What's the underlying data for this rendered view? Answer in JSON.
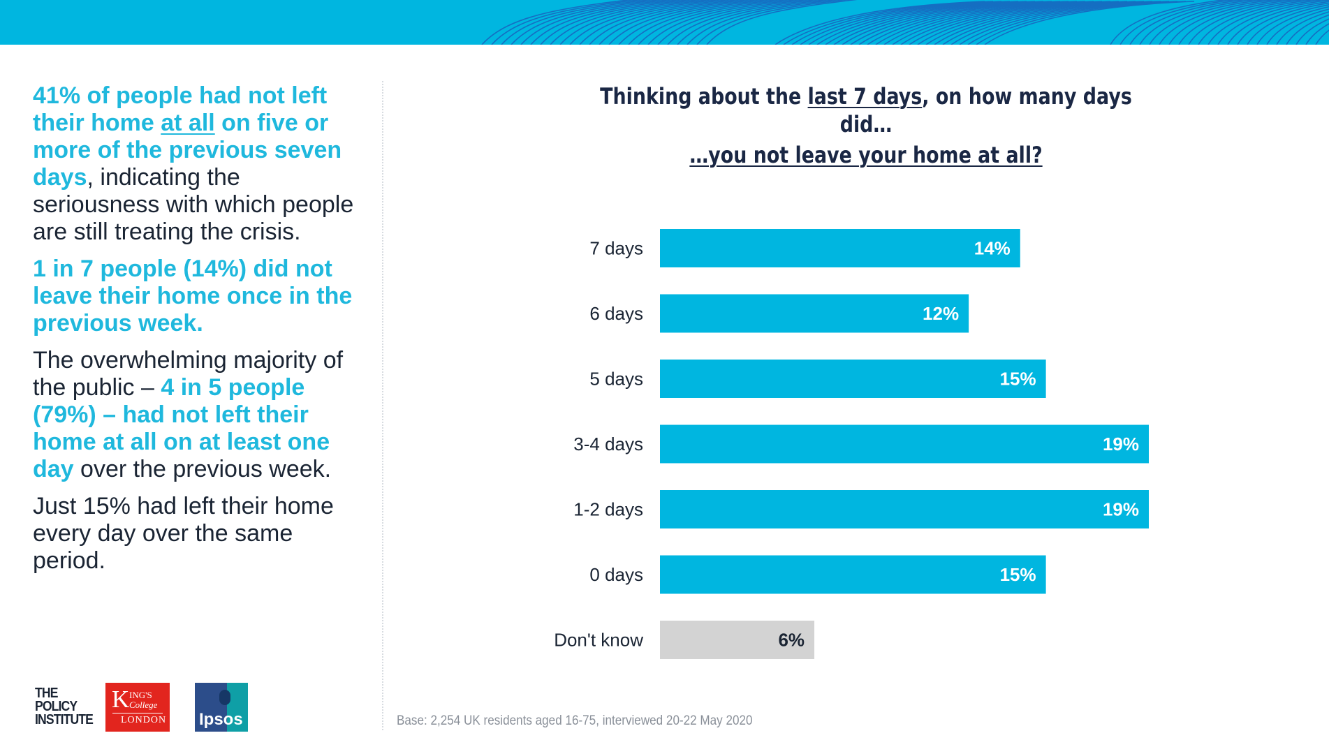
{
  "left_panel": {
    "p1_hl_a": "41% of people had not left their home ",
    "p1_hl_u": "at all",
    "p1_hl_b": " on five or more of the previous seven days",
    "p1_rest": ", indicating the seriousness with which people are still treating the crisis.",
    "p2": "1 in 7 people (14%) did not leave their home once in the previous week.",
    "p3_a": "The overwhelming majority of the public – ",
    "p3_hl": "4 in 5 people (79%) – had not left their home at all on at least one day",
    "p3_b": " over the previous week.",
    "p4": "Just 15% had left their home every day over the same period."
  },
  "chart_data": {
    "type": "bar",
    "orientation": "horizontal",
    "title_a": "Thinking about the ",
    "title_u": "last 7 days",
    "title_b": ", on how many days did…",
    "subtitle": "…you not leave your home at all?",
    "categories": [
      "7 days",
      "6 days",
      "5 days",
      "3-4 days",
      "1-2 days",
      "0 days",
      "Don't know"
    ],
    "values": [
      14,
      12,
      15,
      19,
      19,
      15,
      6
    ],
    "value_labels": [
      "14%",
      "12%",
      "15%",
      "19%",
      "19%",
      "15%",
      "6%"
    ],
    "colors": [
      "#00b6e0",
      "#00b6e0",
      "#00b6e0",
      "#00b6e0",
      "#00b6e0",
      "#00b6e0",
      "#d3d3d3"
    ],
    "value_label_colors": [
      "#ffffff",
      "#ffffff",
      "#ffffff",
      "#ffffff",
      "#ffffff",
      "#ffffff",
      "#1a2433"
    ],
    "xlim": [
      0,
      19
    ],
    "grid": false
  },
  "footnote": "Base: 2,254 UK residents aged 16-75, interviewed 20-22 May 2020",
  "logos": {
    "policy_institute": [
      "THE",
      "POLICY",
      "INSTITUTE"
    ],
    "kings_k": "K",
    "kings_ings": "ING'S",
    "kings_college": "College",
    "kings_london": "LONDON",
    "ipsos": "Ipsos"
  },
  "colors": {
    "accent": "#00b6e0",
    "highlight_text": "#1fb8dd",
    "dark_text": "#1a2433",
    "title": "#1a2744"
  }
}
